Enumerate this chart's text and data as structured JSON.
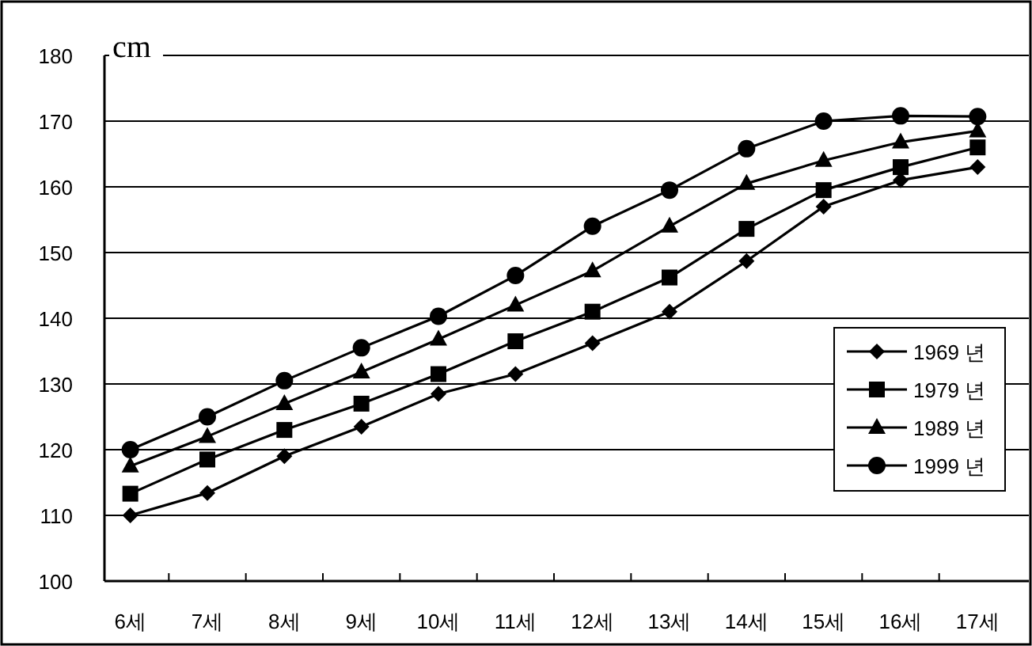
{
  "chart_data": {
    "type": "line",
    "ylabel": "cm",
    "categories": [
      "6세",
      "7세",
      "8세",
      "9세",
      "10세",
      "11세",
      "12세",
      "13세",
      "14세",
      "15세",
      "16세",
      "17세"
    ],
    "ylim": [
      100,
      180
    ],
    "yticks": [
      100,
      110,
      120,
      130,
      140,
      150,
      160,
      170,
      180
    ],
    "grid": "y",
    "legend": "right",
    "line_style": "solid",
    "series": [
      {
        "name": "1969 년",
        "color": "#000000",
        "marker": "diamond",
        "values": [
          110,
          113.4,
          119,
          123.5,
          128.5,
          131.5,
          136.2,
          141,
          148.7,
          157,
          161,
          163
        ]
      },
      {
        "name": "1979 년",
        "color": "#000000",
        "marker": "square",
        "values": [
          113.3,
          118.5,
          123,
          127,
          131.5,
          136.5,
          141,
          146.2,
          153.6,
          159.5,
          163,
          166
        ]
      },
      {
        "name": "1989 년",
        "color": "#000000",
        "marker": "triangle",
        "values": [
          117.5,
          122,
          127,
          131.8,
          136.8,
          142,
          147.2,
          154,
          160.5,
          164,
          166.8,
          168.5
        ]
      },
      {
        "name": "1999 년",
        "color": "#000000",
        "marker": "circle",
        "values": [
          120,
          125,
          130.5,
          135.5,
          140.3,
          146.5,
          154,
          159.5,
          165.8,
          170,
          170.8,
          170.7
        ]
      }
    ]
  }
}
